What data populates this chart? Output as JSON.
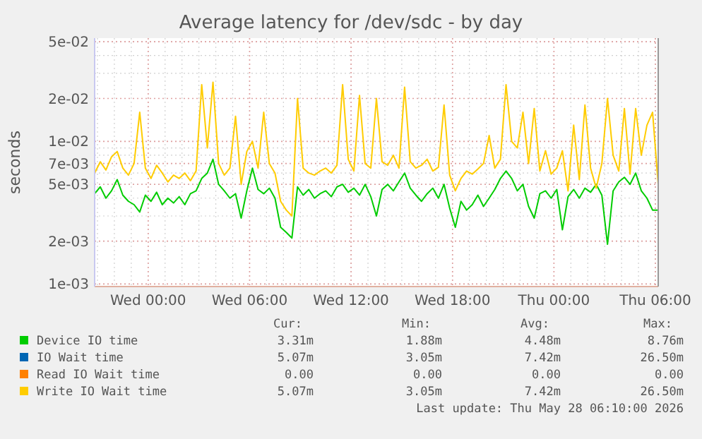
{
  "chart_data": {
    "type": "line",
    "title": "Average latency for /dev/sdc - by day",
    "ylabel": "seconds",
    "log": true,
    "grid": true,
    "legend": "bottom",
    "xlim": [
      "2026-05-26T20:50",
      "2026-05-28T06:10"
    ],
    "xticks": [
      {
        "value": "2026-05-27T00:00",
        "label": "Wed 00:00"
      },
      {
        "value": "2026-05-27T06:00",
        "label": "Wed 06:00"
      },
      {
        "value": "2026-05-27T12:00",
        "label": "Wed 12:00"
      },
      {
        "value": "2026-05-27T18:00",
        "label": "Wed 18:00"
      },
      {
        "value": "2026-05-28T00:00",
        "label": "Thu 00:00"
      },
      {
        "value": "2026-05-28T06:00",
        "label": "Thu 06:00"
      }
    ],
    "ylim": [
      0.00096,
      0.053
    ],
    "yticks": [
      {
        "value": 0.001,
        "label": "1e-03"
      },
      {
        "value": 0.002,
        "label": "2e-03"
      },
      {
        "value": 0.005,
        "label": "5e-03"
      },
      {
        "value": 0.007,
        "label": "7e-03"
      },
      {
        "value": 0.01,
        "label": "1e-02"
      },
      {
        "value": 0.02,
        "label": "2e-02"
      },
      {
        "value": 0.05,
        "label": "5e-02"
      }
    ],
    "x": [
      "2026-05-26T20:50",
      "2026-05-26T21:10",
      "2026-05-26T21:30",
      "2026-05-26T21:50",
      "2026-05-26T22:10",
      "2026-05-26T22:30",
      "2026-05-26T22:50",
      "2026-05-26T23:10",
      "2026-05-26T23:30",
      "2026-05-26T23:50",
      "2026-05-27T00:10",
      "2026-05-27T00:30",
      "2026-05-27T00:50",
      "2026-05-27T01:10",
      "2026-05-27T01:30",
      "2026-05-27T01:50",
      "2026-05-27T02:10",
      "2026-05-27T02:30",
      "2026-05-27T02:50",
      "2026-05-27T03:10",
      "2026-05-27T03:30",
      "2026-05-27T03:50",
      "2026-05-27T04:10",
      "2026-05-27T04:30",
      "2026-05-27T04:50",
      "2026-05-27T05:10",
      "2026-05-27T05:30",
      "2026-05-27T05:50",
      "2026-05-27T06:10",
      "2026-05-27T06:30",
      "2026-05-27T06:50",
      "2026-05-27T07:10",
      "2026-05-27T07:30",
      "2026-05-27T07:50",
      "2026-05-27T08:10",
      "2026-05-27T08:30",
      "2026-05-27T08:50",
      "2026-05-27T09:10",
      "2026-05-27T09:30",
      "2026-05-27T09:50",
      "2026-05-27T10:10",
      "2026-05-27T10:30",
      "2026-05-27T10:50",
      "2026-05-27T11:10",
      "2026-05-27T11:30",
      "2026-05-27T11:50",
      "2026-05-27T12:10",
      "2026-05-27T12:30",
      "2026-05-27T12:50",
      "2026-05-27T13:10",
      "2026-05-27T13:30",
      "2026-05-27T13:50",
      "2026-05-27T14:10",
      "2026-05-27T14:30",
      "2026-05-27T14:50",
      "2026-05-27T15:10",
      "2026-05-27T15:30",
      "2026-05-27T15:50",
      "2026-05-27T16:10",
      "2026-05-27T16:30",
      "2026-05-27T16:50",
      "2026-05-27T17:10",
      "2026-05-27T17:30",
      "2026-05-27T17:50",
      "2026-05-27T18:10",
      "2026-05-27T18:30",
      "2026-05-27T18:50",
      "2026-05-27T19:10",
      "2026-05-27T19:30",
      "2026-05-27T19:50",
      "2026-05-27T20:10",
      "2026-05-27T20:30",
      "2026-05-27T20:50",
      "2026-05-27T21:10",
      "2026-05-27T21:30",
      "2026-05-27T21:50",
      "2026-05-27T22:10",
      "2026-05-27T22:30",
      "2026-05-27T22:50",
      "2026-05-27T23:10",
      "2026-05-27T23:30",
      "2026-05-27T23:50",
      "2026-05-28T00:10",
      "2026-05-28T00:30",
      "2026-05-28T00:50",
      "2026-05-28T01:10",
      "2026-05-28T01:30",
      "2026-05-28T01:50",
      "2026-05-28T02:10",
      "2026-05-28T02:30",
      "2026-05-28T02:50",
      "2026-05-28T03:10",
      "2026-05-28T03:30",
      "2026-05-28T03:50",
      "2026-05-28T04:10",
      "2026-05-28T04:30",
      "2026-05-28T04:50",
      "2026-05-28T05:10",
      "2026-05-28T05:30",
      "2026-05-28T05:50",
      "2026-05-28T06:10"
    ],
    "series": [
      {
        "name": "Device IO time",
        "color": "#00cc00",
        "values": [
          0.0043,
          0.0048,
          0.004,
          0.0045,
          0.0054,
          0.0042,
          0.0038,
          0.0036,
          0.0032,
          0.0042,
          0.0038,
          0.0044,
          0.0036,
          0.004,
          0.0037,
          0.0041,
          0.0036,
          0.0043,
          0.0045,
          0.0055,
          0.006,
          0.0075,
          0.005,
          0.0045,
          0.004,
          0.0043,
          0.0029,
          0.0045,
          0.0065,
          0.0046,
          0.0043,
          0.0047,
          0.004,
          0.0025,
          0.0023,
          0.0021,
          0.0048,
          0.0042,
          0.0046,
          0.004,
          0.0043,
          0.0045,
          0.0041,
          0.0048,
          0.005,
          0.0044,
          0.0047,
          0.0042,
          0.005,
          0.0041,
          0.003,
          0.0046,
          0.005,
          0.0045,
          0.0052,
          0.006,
          0.0047,
          0.0042,
          0.0038,
          0.0043,
          0.0047,
          0.004,
          0.005,
          0.0034,
          0.0025,
          0.0038,
          0.0033,
          0.0036,
          0.0042,
          0.0035,
          0.004,
          0.0046,
          0.0055,
          0.0062,
          0.0055,
          0.0045,
          0.005,
          0.0035,
          0.0029,
          0.0043,
          0.0045,
          0.004,
          0.0046,
          0.0024,
          0.0041,
          0.0046,
          0.004,
          0.0047,
          0.0044,
          0.005,
          0.0042,
          0.0019,
          0.0045,
          0.0052,
          0.0056,
          0.005,
          0.006,
          0.0045,
          0.004,
          0.0033,
          0.0033
        ]
      },
      {
        "name": "IO Wait time",
        "color": "#0066b3",
        "values": [
          null,
          null,
          null,
          null,
          null,
          null,
          null,
          null,
          null,
          null,
          null,
          null,
          null,
          null,
          null,
          null,
          null,
          null,
          null,
          null,
          null,
          null,
          null,
          null,
          null,
          null,
          null,
          null,
          null,
          null,
          null,
          null,
          null,
          null,
          null,
          null,
          null,
          null,
          null,
          null,
          null,
          null,
          null,
          null,
          null,
          null,
          null,
          null,
          null,
          null,
          null,
          null,
          null,
          null,
          null,
          null,
          null,
          null,
          null,
          null,
          null,
          null,
          null,
          null,
          null,
          null,
          null,
          null,
          null,
          null,
          null,
          null,
          null,
          null,
          null,
          null,
          null,
          null,
          null,
          null,
          null,
          null,
          null,
          null,
          null,
          null,
          null,
          null,
          null,
          null,
          null,
          null,
          null,
          null,
          null,
          null,
          null,
          null,
          null,
          null,
          null
        ]
      },
      {
        "name": "Read IO Wait time",
        "color": "#ff8000",
        "values": [
          null,
          null,
          null,
          null,
          null,
          null,
          null,
          null,
          null,
          null,
          null,
          null,
          null,
          null,
          null,
          null,
          null,
          null,
          null,
          null,
          null,
          null,
          null,
          null,
          null,
          null,
          null,
          null,
          null,
          null,
          null,
          null,
          null,
          null,
          null,
          null,
          null,
          null,
          null,
          null,
          null,
          null,
          null,
          null,
          null,
          null,
          null,
          null,
          null,
          null,
          null,
          null,
          null,
          null,
          null,
          null,
          null,
          null,
          null,
          null,
          null,
          null,
          null,
          null,
          null,
          null,
          null,
          null,
          null,
          null,
          null,
          null,
          null,
          null,
          null,
          null,
          null,
          null,
          null,
          null,
          null,
          null,
          null,
          null,
          null,
          null,
          null,
          null,
          null,
          null,
          null,
          null,
          null,
          null,
          null,
          null,
          null,
          null,
          null,
          null,
          null
        ]
      },
      {
        "name": "Write IO Wait time",
        "color": "#ffcc00",
        "values": [
          0.006,
          0.0072,
          0.0063,
          0.0078,
          0.0085,
          0.0065,
          0.0058,
          0.007,
          0.016,
          0.0065,
          0.0055,
          0.0068,
          0.006,
          0.0052,
          0.0058,
          0.0055,
          0.006,
          0.0053,
          0.0062,
          0.025,
          0.009,
          0.026,
          0.007,
          0.0058,
          0.0065,
          0.015,
          0.005,
          0.0085,
          0.01,
          0.0065,
          0.016,
          0.007,
          0.006,
          0.0038,
          0.0033,
          0.003,
          0.02,
          0.0065,
          0.006,
          0.0058,
          0.0062,
          0.0065,
          0.006,
          0.0068,
          0.025,
          0.0075,
          0.0062,
          0.021,
          0.007,
          0.0065,
          0.02,
          0.0072,
          0.0068,
          0.008,
          0.0065,
          0.024,
          0.0072,
          0.0065,
          0.0068,
          0.0075,
          0.0062,
          0.0066,
          0.018,
          0.0058,
          0.0045,
          0.0055,
          0.0062,
          0.0059,
          0.0064,
          0.007,
          0.011,
          0.0065,
          0.0075,
          0.025,
          0.01,
          0.009,
          0.016,
          0.007,
          0.017,
          0.0062,
          0.0086,
          0.0059,
          0.0065,
          0.0086,
          0.0045,
          0.013,
          0.0054,
          0.018,
          0.0065,
          0.0047,
          0.007,
          0.02,
          0.008,
          0.0062,
          0.017,
          0.0059,
          0.017,
          0.008,
          0.013,
          0.016,
          0.005
        ]
      }
    ],
    "annotations": [
      "Cur:",
      "Min:",
      "Avg:",
      "Max:",
      "3.31m",
      "1.88m",
      "4.48m",
      "8.76m",
      "5.07m",
      "3.05m",
      "7.42m",
      "26.50m",
      "0.00",
      "0.00",
      "0.00",
      "0.00",
      "5.07m",
      "3.05m",
      "7.42m",
      "26.50m",
      "Last update: Thu May 28 06:10:00 2026"
    ]
  }
}
